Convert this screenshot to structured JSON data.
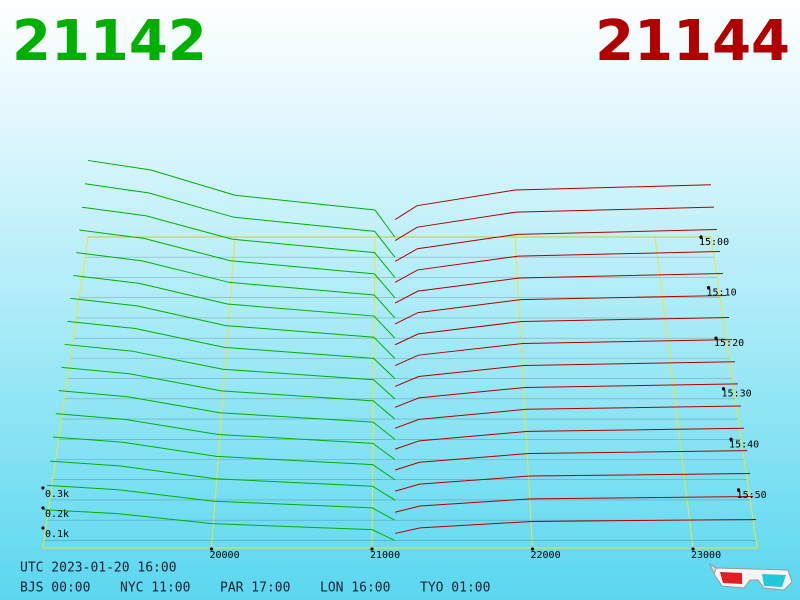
{
  "chart_data": {
    "type": "depth3d",
    "bid_price": 21142,
    "ask_price": 21144,
    "bid_color": "#00b000",
    "ask_color": "#b00000",
    "grid_color": "#e8e830",
    "xlim": [
      18950,
      23400
    ],
    "xticks": [
      20000,
      21000,
      22000,
      23000
    ],
    "tlim": [
      0,
      61.5
    ],
    "tticks": [
      {
        "value": 0,
        "label": "15:00"
      },
      {
        "value": 10,
        "label": "15:10"
      },
      {
        "value": 20,
        "label": "15:20"
      },
      {
        "value": 30,
        "label": "15:30"
      },
      {
        "value": 40,
        "label": "15:40"
      },
      {
        "value": 50,
        "label": "15:50"
      }
    ],
    "zticks": [
      {
        "value": 100,
        "label": "0.1k"
      },
      {
        "value": 200,
        "label": "0.2k"
      },
      {
        "value": 300,
        "label": "0.3k"
      }
    ],
    "bid_prices": [
      18950,
      19400,
      20000,
      21000,
      21142
    ],
    "ask_prices": [
      21144,
      21300,
      22000,
      23400
    ],
    "snapshots": [
      {
        "t": 0,
        "bids": [
          440,
          385,
          240,
          155,
          0
        ],
        "asks": [
          100,
          180,
          270,
          300
        ]
      },
      {
        "t": 4,
        "bids": [
          418,
          366,
          228,
          147,
          0
        ],
        "asks": [
          95,
          171,
          257,
          285
        ]
      },
      {
        "t": 8,
        "bids": [
          396,
          347,
          216,
          140,
          0
        ],
        "asks": [
          90,
          162,
          243,
          270
        ]
      },
      {
        "t": 12,
        "bids": [
          378,
          331,
          206,
          133,
          0
        ],
        "asks": [
          86,
          155,
          232,
          258
        ]
      },
      {
        "t": 16,
        "bids": [
          361,
          316,
          197,
          127,
          0
        ],
        "asks": [
          82,
          148,
          221,
          246
        ]
      },
      {
        "t": 20,
        "bids": [
          343,
          300,
          187,
          121,
          0
        ],
        "asks": [
          78,
          140,
          211,
          234
        ]
      },
      {
        "t": 24,
        "bids": [
          326,
          285,
          178,
          115,
          0
        ],
        "asks": [
          74,
          133,
          200,
          222
        ]
      },
      {
        "t": 28,
        "bids": [
          308,
          270,
          168,
          109,
          0
        ],
        "asks": [
          70,
          126,
          189,
          210
        ]
      },
      {
        "t": 32,
        "bids": [
          290,
          254,
          158,
          102,
          0
        ],
        "asks": [
          66,
          119,
          178,
          198
        ]
      },
      {
        "t": 36,
        "bids": [
          273,
          239,
          149,
          96,
          0
        ],
        "asks": [
          62,
          112,
          167,
          186
        ]
      },
      {
        "t": 40,
        "bids": [
          255,
          223,
          139,
          90,
          0
        ],
        "asks": [
          58,
          104,
          157,
          174
        ]
      },
      {
        "t": 44,
        "bids": [
          238,
          208,
          130,
          84,
          0
        ],
        "asks": [
          54,
          97,
          146,
          162
        ]
      },
      {
        "t": 48,
        "bids": [
          220,
          193,
          120,
          78,
          0
        ],
        "asks": [
          50,
          90,
          135,
          150
        ]
      },
      {
        "t": 52,
        "bids": [
          198,
          173,
          108,
          70,
          0
        ],
        "asks": [
          45,
          81,
          122,
          135
        ]
      },
      {
        "t": 56,
        "bids": [
          176,
          154,
          96,
          62,
          0
        ],
        "asks": [
          40,
          72,
          108,
          120
        ]
      },
      {
        "t": 60,
        "bids": [
          154,
          135,
          84,
          54,
          0
        ],
        "asks": [
          35,
          63,
          95,
          105
        ]
      }
    ],
    "utc_label": "UTC 2023-01-20 16:00",
    "clocks": [
      "BJS 00:00",
      "NYC 11:00",
      "PAR 17:00",
      "LON 16:00",
      "TYO 01:00"
    ]
  }
}
